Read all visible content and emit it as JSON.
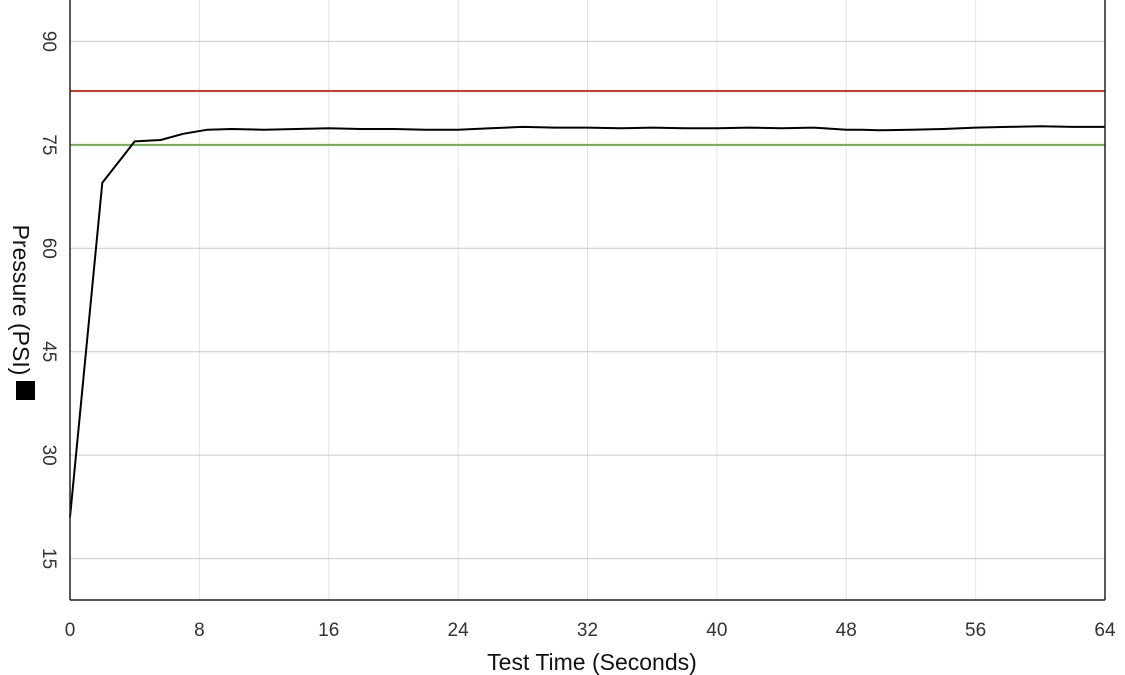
{
  "chart_data": {
    "type": "line",
    "title": "",
    "xlabel": "Test Time (Seconds)",
    "ylabel": "Pressure (PSI)",
    "xlim": [
      0,
      64
    ],
    "ylim": [
      9,
      96
    ],
    "x_ticks": [
      0,
      8,
      16,
      24,
      32,
      40,
      48,
      56,
      64
    ],
    "y_ticks": [
      15,
      30,
      45,
      60,
      75,
      90
    ],
    "grid": true,
    "legend": "left, beside axis title (black square)",
    "series": [
      {
        "color": "#000000",
        "x": [
          0,
          2,
          4,
          5.6,
          7,
          8.5,
          10,
          12,
          14,
          16,
          18,
          20,
          22,
          24,
          26,
          28,
          30,
          32,
          34,
          36,
          38,
          40,
          42,
          44,
          46,
          48,
          49,
          50,
          52,
          54,
          56,
          58,
          60,
          62,
          64
        ],
        "y": [
          21,
          69.5,
          75.5,
          75.7,
          76.6,
          77.2,
          77.3,
          77.2,
          77.3,
          77.4,
          77.3,
          77.3,
          77.2,
          77.2,
          77.4,
          77.6,
          77.5,
          77.5,
          77.4,
          77.5,
          77.4,
          77.4,
          77.5,
          77.4,
          77.5,
          77.2,
          77.2,
          77.1,
          77.2,
          77.3,
          77.5,
          77.6,
          77.7,
          77.6,
          77.6
        ]
      }
    ],
    "reference_lines": [
      {
        "y": 82.8,
        "color": "#d9342b"
      },
      {
        "y": 75,
        "color": "#6ab04c"
      }
    ]
  }
}
